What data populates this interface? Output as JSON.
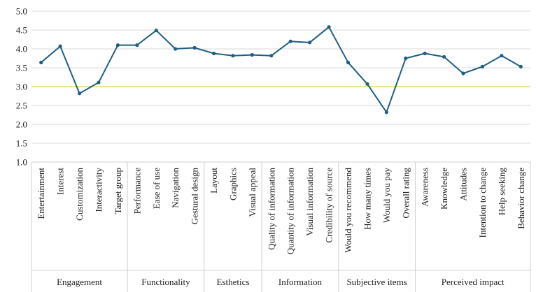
{
  "chart_data": {
    "type": "line",
    "title": "",
    "xlabel": "",
    "ylabel": "",
    "ylim": [
      1.0,
      5.0
    ],
    "ytick_step": 0.5,
    "ytick_labels": [
      "1.0",
      "1.5",
      "2.0",
      "2.5",
      "3.0",
      "3.5",
      "4.0",
      "4.5",
      "5.0"
    ],
    "grid": true,
    "reference_line": {
      "value": 3.0,
      "color": "#e8d87a"
    },
    "line_color": "#1f5f82",
    "categories": [
      "Entertainment",
      "Interest",
      "Customization",
      "Interactivity",
      "Target group",
      "Performance",
      "Ease of use",
      "Navigation",
      "Gestural design",
      "Layout",
      "Graphics",
      "Visual appeal",
      "Quality of information",
      "Quantity of information",
      "Visual information",
      "Credibility of source",
      "Would you recommend",
      "How many times",
      "Would you pay",
      "Overall rating",
      "Awareness",
      "Knowledge",
      "Attitudes",
      "Intention to change",
      "Help seeking",
      "Behavior change"
    ],
    "values": [
      3.64,
      4.07,
      2.82,
      3.11,
      4.1,
      4.1,
      4.49,
      4.0,
      4.03,
      3.88,
      3.82,
      3.84,
      3.82,
      4.2,
      4.17,
      4.58,
      3.64,
      3.07,
      2.32,
      3.75,
      3.88,
      3.79,
      3.35,
      3.53,
      3.82,
      3.53
    ],
    "groups": [
      {
        "label": "Engagement",
        "count": 5
      },
      {
        "label": "Functionality",
        "count": 4
      },
      {
        "label": "Esthetics",
        "count": 3
      },
      {
        "label": "Information",
        "count": 4
      },
      {
        "label": "Subjective items",
        "count": 4
      },
      {
        "label": "Perceived impact",
        "count": 6
      }
    ]
  }
}
